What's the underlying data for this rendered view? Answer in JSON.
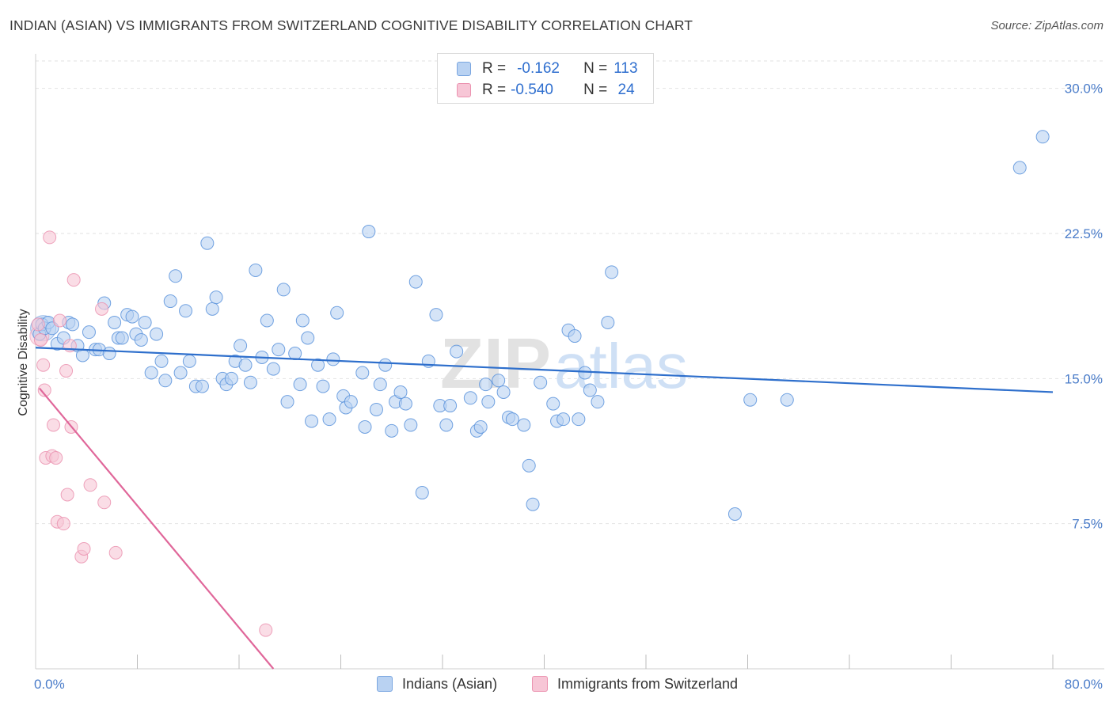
{
  "header": {
    "title": "INDIAN (ASIAN) VS IMMIGRANTS FROM SWITZERLAND COGNITIVE DISABILITY CORRELATION CHART",
    "source": "Source: ZipAtlas.com"
  },
  "legend": {
    "r_label": "R =",
    "n_label": "N =",
    "rows": [
      {
        "r": "-0.162",
        "n": "113",
        "color": "#7aa6e0"
      },
      {
        "r": "-0.540",
        "n": " 24",
        "color": "#eb93b0"
      }
    ]
  },
  "watermark": {
    "zip": "ZIP",
    "atlas": "atlas"
  },
  "chart_data": {
    "type": "scatter",
    "xlabel": "",
    "ylabel": "Cognitive Disability",
    "xlim": [
      0,
      80
    ],
    "ylim": [
      0,
      31.5
    ],
    "x_tick_labels": [
      "0.0%",
      "80.0%"
    ],
    "y_ticks": [
      7.5,
      15.0,
      22.5,
      30.0
    ],
    "y_tick_labels": [
      "7.5%",
      "15.0%",
      "22.5%",
      "30.0%"
    ],
    "grid": true,
    "legend_position": "bottom",
    "series": [
      {
        "name": "Indians (Asian)",
        "color": "#5b93dc",
        "fill": "#b9d2f2",
        "trend": {
          "x": [
            0,
            80
          ],
          "y": [
            16.6,
            14.3
          ]
        },
        "points": [
          [
            0.3,
            17.3
          ],
          [
            0.5,
            17.8
          ],
          [
            0.7,
            17.6
          ],
          [
            1.0,
            17.9
          ],
          [
            1.3,
            17.6
          ],
          [
            1.7,
            16.8
          ],
          [
            2.2,
            17.1
          ],
          [
            2.6,
            17.9
          ],
          [
            2.9,
            17.8
          ],
          [
            3.3,
            16.7
          ],
          [
            3.7,
            16.2
          ],
          [
            4.2,
            17.4
          ],
          [
            4.7,
            16.5
          ],
          [
            5.0,
            16.5
          ],
          [
            5.4,
            18.9
          ],
          [
            5.8,
            16.3
          ],
          [
            6.2,
            17.9
          ],
          [
            6.5,
            17.1
          ],
          [
            6.8,
            17.1
          ],
          [
            7.2,
            18.3
          ],
          [
            7.6,
            18.2
          ],
          [
            7.9,
            17.3
          ],
          [
            8.3,
            17.0
          ],
          [
            8.6,
            17.9
          ],
          [
            9.1,
            15.3
          ],
          [
            9.5,
            17.3
          ],
          [
            9.9,
            15.9
          ],
          [
            10.2,
            14.9
          ],
          [
            10.6,
            19.0
          ],
          [
            11.0,
            20.3
          ],
          [
            11.4,
            15.3
          ],
          [
            11.8,
            18.5
          ],
          [
            12.1,
            15.9
          ],
          [
            12.6,
            14.6
          ],
          [
            13.1,
            14.6
          ],
          [
            13.5,
            22.0
          ],
          [
            13.9,
            18.6
          ],
          [
            14.2,
            19.2
          ],
          [
            14.7,
            15.0
          ],
          [
            15.0,
            14.7
          ],
          [
            15.4,
            15.0
          ],
          [
            15.7,
            15.9
          ],
          [
            16.1,
            16.7
          ],
          [
            16.5,
            15.7
          ],
          [
            16.9,
            14.8
          ],
          [
            17.3,
            20.6
          ],
          [
            17.8,
            16.1
          ],
          [
            18.2,
            18.0
          ],
          [
            18.7,
            15.5
          ],
          [
            19.1,
            16.5
          ],
          [
            19.5,
            19.6
          ],
          [
            19.8,
            13.8
          ],
          [
            20.4,
            16.3
          ],
          [
            20.8,
            14.7
          ],
          [
            21.0,
            18.0
          ],
          [
            21.4,
            17.1
          ],
          [
            21.7,
            12.8
          ],
          [
            22.2,
            15.7
          ],
          [
            22.6,
            14.6
          ],
          [
            23.1,
            12.9
          ],
          [
            23.4,
            16.0
          ],
          [
            23.7,
            18.4
          ],
          [
            24.2,
            14.1
          ],
          [
            24.4,
            13.5
          ],
          [
            24.8,
            13.8
          ],
          [
            25.7,
            15.3
          ],
          [
            25.9,
            12.5
          ],
          [
            26.2,
            22.6
          ],
          [
            26.8,
            13.4
          ],
          [
            27.1,
            14.7
          ],
          [
            27.5,
            15.7
          ],
          [
            28.0,
            12.3
          ],
          [
            28.3,
            13.8
          ],
          [
            28.7,
            14.3
          ],
          [
            29.1,
            13.7
          ],
          [
            29.5,
            12.6
          ],
          [
            29.9,
            20.0
          ],
          [
            30.4,
            9.1
          ],
          [
            30.9,
            15.9
          ],
          [
            31.5,
            18.3
          ],
          [
            31.8,
            13.6
          ],
          [
            32.3,
            12.6
          ],
          [
            32.6,
            13.6
          ],
          [
            33.1,
            16.4
          ],
          [
            34.2,
            14.0
          ],
          [
            34.7,
            12.3
          ],
          [
            35.0,
            12.5
          ],
          [
            35.4,
            14.7
          ],
          [
            35.6,
            13.8
          ],
          [
            36.4,
            14.9
          ],
          [
            36.8,
            14.3
          ],
          [
            37.2,
            13.0
          ],
          [
            37.5,
            12.9
          ],
          [
            38.4,
            12.6
          ],
          [
            38.8,
            10.5
          ],
          [
            39.1,
            8.5
          ],
          [
            39.7,
            14.8
          ],
          [
            40.7,
            13.7
          ],
          [
            41.0,
            12.8
          ],
          [
            41.5,
            12.9
          ],
          [
            41.9,
            17.5
          ],
          [
            42.4,
            17.2
          ],
          [
            42.7,
            12.9
          ],
          [
            43.2,
            15.3
          ],
          [
            43.6,
            14.4
          ],
          [
            44.2,
            13.8
          ],
          [
            45.0,
            17.9
          ],
          [
            45.3,
            20.5
          ],
          [
            55.0,
            8.0
          ],
          [
            56.2,
            13.9
          ],
          [
            59.1,
            13.9
          ],
          [
            77.4,
            25.9
          ],
          [
            79.2,
            27.5
          ]
        ]
      },
      {
        "name": "Immigrants from Switzerland",
        "color": "#eb93b0",
        "fill": "#f7c6d6",
        "trend": {
          "x": [
            0.3,
            18.7
          ],
          "y": [
            14.5,
            0
          ]
        },
        "points": [
          [
            0.2,
            17.8
          ],
          [
            0.4,
            17.0
          ],
          [
            0.6,
            15.7
          ],
          [
            0.7,
            14.4
          ],
          [
            0.8,
            10.9
          ],
          [
            1.1,
            22.3
          ],
          [
            1.3,
            11.0
          ],
          [
            1.4,
            12.6
          ],
          [
            1.6,
            10.9
          ],
          [
            1.7,
            7.6
          ],
          [
            1.9,
            18.0
          ],
          [
            2.2,
            7.5
          ],
          [
            2.4,
            15.4
          ],
          [
            2.5,
            9.0
          ],
          [
            2.7,
            16.7
          ],
          [
            2.8,
            12.5
          ],
          [
            3.0,
            20.1
          ],
          [
            3.6,
            5.8
          ],
          [
            3.8,
            6.2
          ],
          [
            4.3,
            9.5
          ],
          [
            5.2,
            18.6
          ],
          [
            5.4,
            8.6
          ],
          [
            6.3,
            6.0
          ],
          [
            18.1,
            2.0
          ]
        ]
      }
    ]
  }
}
